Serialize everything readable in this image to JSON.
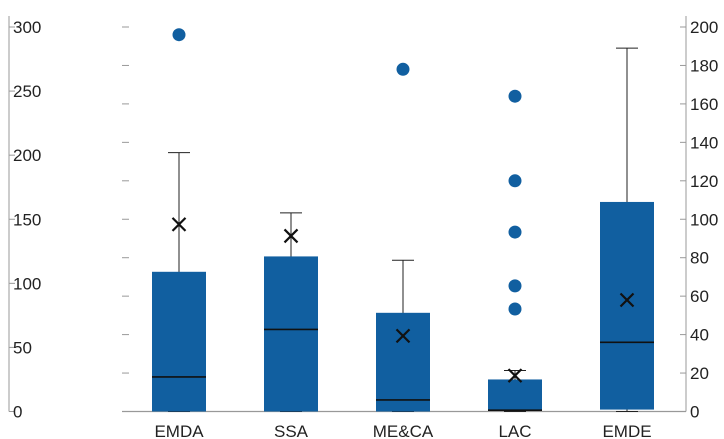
{
  "chart_data": {
    "type": "box",
    "title": "",
    "categories": [
      "EMDA",
      "SSA",
      "ME&CA",
      "LAC",
      "EMDE"
    ],
    "left_axis": {
      "ylim": [
        0,
        300
      ],
      "ticks": [
        0,
        50,
        100,
        150,
        200,
        250,
        300
      ],
      "tick_labels": [
        "0",
        "50",
        "100",
        "150",
        "200",
        "250",
        "300"
      ]
    },
    "right_axis": {
      "ylim": [
        0,
        200
      ],
      "ticks": [
        0,
        20,
        40,
        60,
        80,
        100,
        120,
        140,
        160,
        180,
        200
      ],
      "tick_labels": [
        "0",
        "20",
        "40",
        "60",
        "80",
        "100",
        "120",
        "140",
        "160",
        "180",
        "200"
      ]
    },
    "boxes": [
      {
        "category": "EMDA",
        "axis": "left",
        "whisker_low": 0,
        "q1": 0,
        "median": 27,
        "q3": 109,
        "whisker_high": 202,
        "mean": 146,
        "outliers": [
          294
        ]
      },
      {
        "category": "SSA",
        "axis": "left",
        "whisker_low": 0,
        "q1": 0,
        "median": 64,
        "q3": 121,
        "whisker_high": 155,
        "mean": 137,
        "outliers": []
      },
      {
        "category": "ME&CA",
        "axis": "left",
        "whisker_low": 0,
        "q1": 0,
        "median": 9,
        "q3": 77,
        "whisker_high": 118,
        "mean": 59,
        "outliers": [
          267
        ]
      },
      {
        "category": "LAC",
        "axis": "left",
        "whisker_low": 0,
        "q1": 1,
        "median": 1,
        "q3": 25,
        "whisker_high": 32,
        "mean": 28,
        "outliers": [
          80,
          98,
          140,
          180,
          246
        ]
      },
      {
        "category": "EMDE",
        "axis": "right",
        "whisker_low": 0,
        "q1": 1,
        "median": 36,
        "q3": 109,
        "whisker_high": 189,
        "mean": 58,
        "outliers": []
      }
    ],
    "grid": false,
    "legend": "none",
    "colors": {
      "box": "#115fa0",
      "outlier": "#115fa0",
      "whisker": "#222222",
      "median": "#111111",
      "mean": "#111111",
      "axis": "#999999"
    }
  }
}
